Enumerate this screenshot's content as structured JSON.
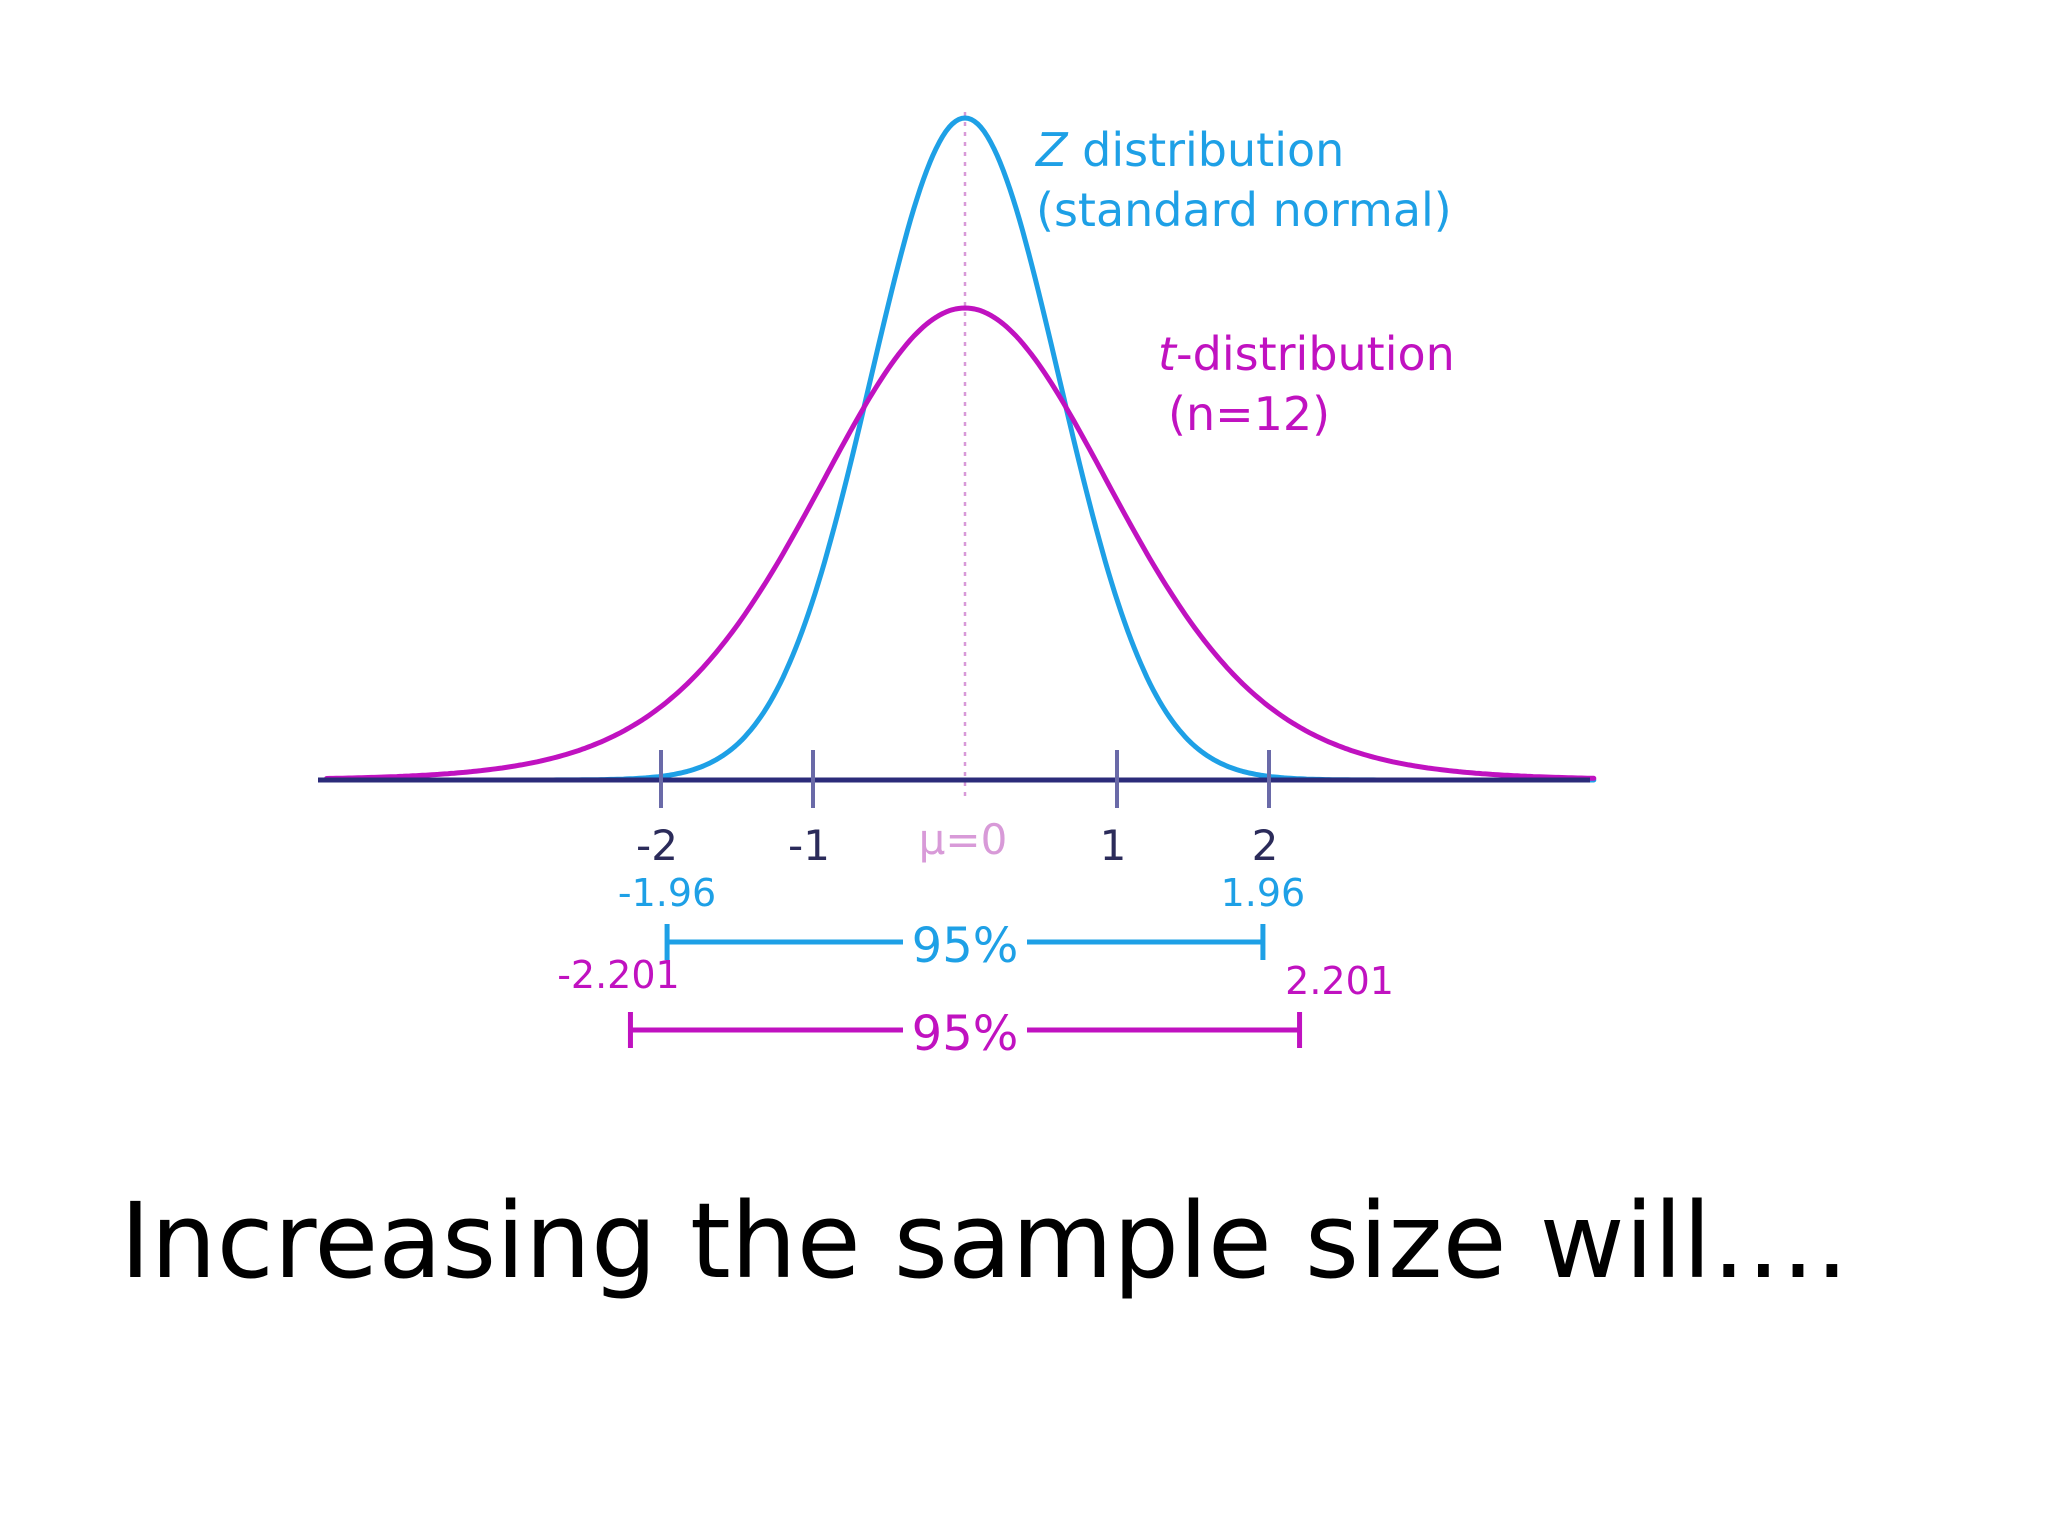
{
  "chart_data": {
    "type": "line",
    "title": "",
    "xlabel": "",
    "ylabel": "",
    "xlim": [
      -4.2,
      4.2
    ],
    "series": [
      {
        "name": "Z distribution (standard normal)",
        "label_line1_italic": "Z",
        "label_line1_rest": " distribution",
        "label_line2": "(standard normal)",
        "distribution": "normal",
        "color": "#1ea0e6",
        "ci_low_label": "-1.96",
        "ci_high_label": "1.96",
        "ci_low": -1.96,
        "ci_high": 1.96,
        "ci_text": "95%"
      },
      {
        "name": "t-distribution (n=12)",
        "label_line1_italic": "t",
        "label_line1_rest": "-distribution",
        "label_line2": "(n=12)",
        "distribution": "t",
        "df": 11,
        "color": "#c012c0",
        "ci_low_label": "-2.201",
        "ci_high_label": "2.201",
        "ci_low": -2.201,
        "ci_high": 2.201,
        "ci_text": "95%"
      }
    ],
    "x_ticks": [
      {
        "value": -2,
        "label": "-2"
      },
      {
        "value": -1,
        "label": "-1"
      },
      {
        "value": 1,
        "label": "1"
      },
      {
        "value": 2,
        "label": "2"
      }
    ],
    "mean_label": "μ=0",
    "axis_color": "#2b2b7a",
    "tick_color": "#6a6aa8",
    "mean_color": "#d89ad8"
  },
  "caption": "Increasing the sample size will…."
}
